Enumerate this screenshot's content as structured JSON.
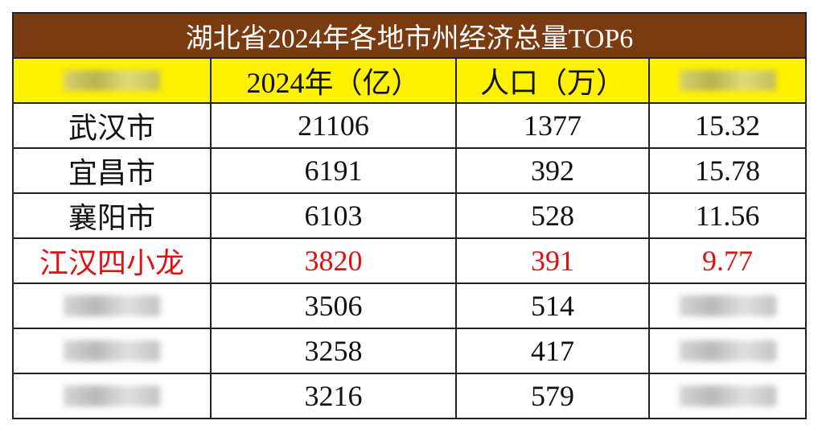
{
  "title": "湖北省2024年各地市州经济总量TOP6",
  "table": {
    "headers": {
      "gdp": "2024年（亿）",
      "population": "人口（万）"
    },
    "rows": [
      {
        "name": "武汉市",
        "gdp": 21106,
        "population": 1377,
        "ratio": 15.32
      },
      {
        "name": "宜昌市",
        "gdp": 6191,
        "population": 392,
        "ratio": 15.78
      },
      {
        "name": "襄阳市",
        "gdp": 6103,
        "population": 528,
        "ratio": 11.56
      },
      {
        "name": "江汉四小龙",
        "gdp": 3820,
        "population": 391,
        "ratio": 9.77,
        "color": "#e01010"
      },
      {
        "gdp": 3506,
        "population": 514
      },
      {
        "gdp": 3258,
        "population": 417
      },
      {
        "gdp": 3216,
        "population": 579
      }
    ]
  }
}
